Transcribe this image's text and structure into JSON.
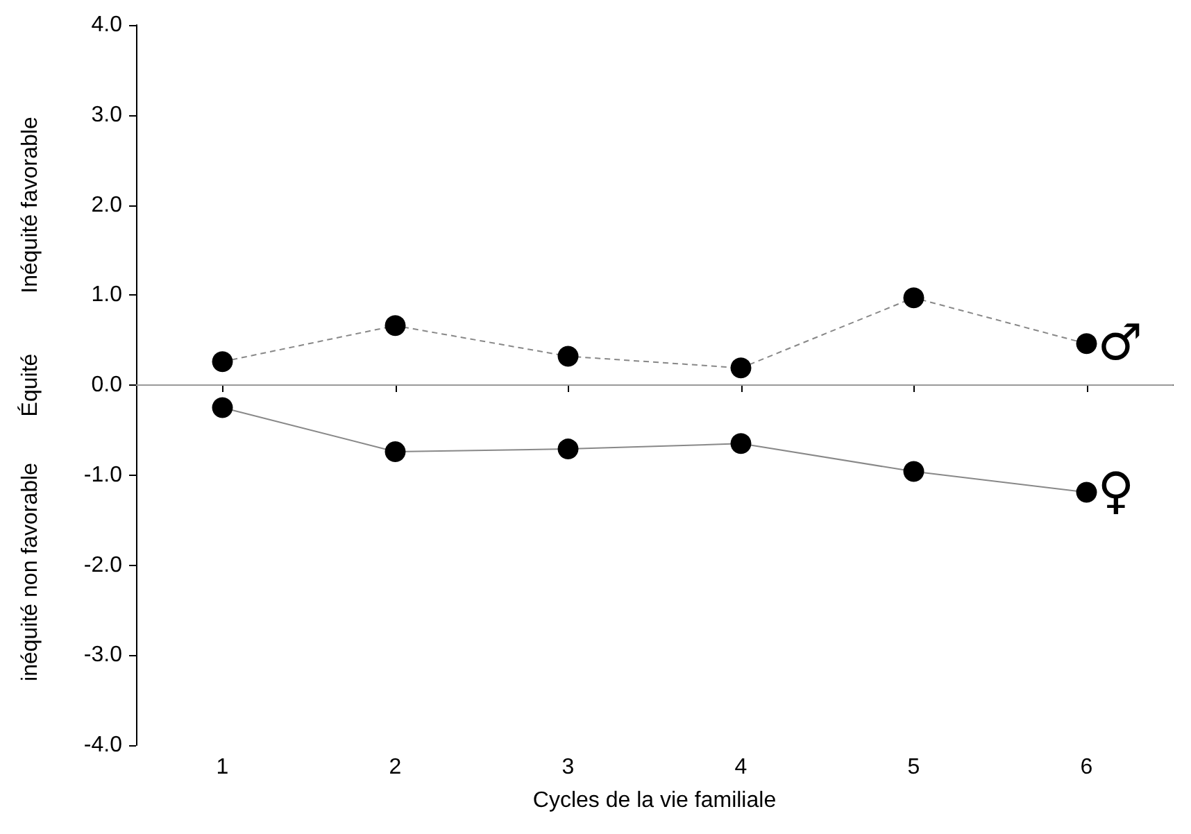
{
  "chart_data": {
    "type": "line",
    "xlabel": "Cycles de la vie familiale",
    "ylabel": "Inéquité favorable",
    "annotations": [
      "Équité",
      "inéquité non favorable"
    ],
    "categories": [
      "1",
      "2",
      "3",
      "4",
      "5",
      "6"
    ],
    "series": [
      {
        "name": "♂",
        "color": "#000000",
        "line_style": "dashed",
        "values": [
          0.26,
          0.66,
          0.32,
          0.19,
          0.97,
          0.46
        ]
      },
      {
        "name": "♀",
        "color": "#000000",
        "line_style": "solid",
        "values": [
          -0.25,
          -0.74,
          -0.71,
          -0.65,
          -0.96,
          -1.19
        ]
      }
    ],
    "ylim": [
      -4,
      4
    ],
    "yticks": [
      {
        "value": -4,
        "label": "-4.0"
      },
      {
        "value": -3,
        "label": "-3.0"
      },
      {
        "value": -2,
        "label": "-2.0"
      },
      {
        "value": -1,
        "label": "-1.0"
      },
      {
        "value": 0,
        "label": "0.0"
      },
      {
        "value": 1,
        "label": "1.0"
      },
      {
        "value": 2,
        "label": "2.0"
      },
      {
        "value": 3,
        "label": "3.0"
      },
      {
        "value": 4,
        "label": "4.0"
      }
    ],
    "ref_lines": [
      {
        "axis": "y",
        "value": 0,
        "color": "#999999"
      }
    ],
    "grid": false,
    "legend": false,
    "marker": "circle"
  }
}
